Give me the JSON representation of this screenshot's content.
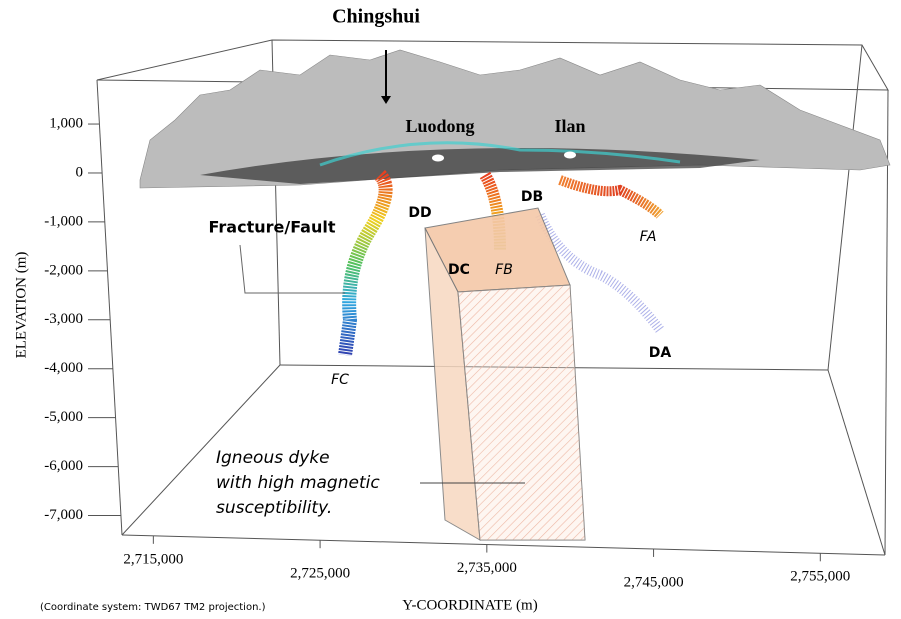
{
  "chart_data": {
    "type": "scatter3d",
    "ylabel": "ELEVATION (m)",
    "xlabel": "Y-COORDINATE (m)",
    "ylim": [
      -7500,
      1900
    ],
    "yticks": [
      {
        "value": 1000,
        "label": "1,000"
      },
      0,
      {
        "value": -1000,
        "label": "-1,000"
      },
      {
        "value": -2000,
        "label": "-2,000"
      },
      {
        "value": -3000,
        "label": "-3,000"
      },
      {
        "value": -4000,
        "label": "-4,000"
      },
      {
        "value": -5000,
        "label": "-5,000"
      },
      {
        "value": -6000,
        "label": "-6,000"
      },
      {
        "value": -7000,
        "label": "-7,000"
      }
    ],
    "xlim": [
      2713000,
      2759000
    ],
    "xticks": [
      {
        "value": 2715000,
        "label": "2,715,000"
      },
      {
        "value": 2725000,
        "label": "2,725,000"
      },
      {
        "value": 2735000,
        "label": "2,735,000"
      },
      {
        "value": 2745000,
        "label": "2,745,000"
      },
      {
        "value": 2755000,
        "label": "2,755,000"
      }
    ],
    "annotations": [
      "Chingshui",
      "Luodong",
      "Ilan",
      "Fracture/Fault",
      "DD",
      "DB",
      "DC",
      "FB",
      "FA",
      "FC",
      "DA"
    ],
    "dyke_label": [
      "Igneous dyke",
      "with high magnetic",
      "susceptibility."
    ],
    "footnote": "(Coordinate system: TWD67 TM2 projection.)"
  }
}
